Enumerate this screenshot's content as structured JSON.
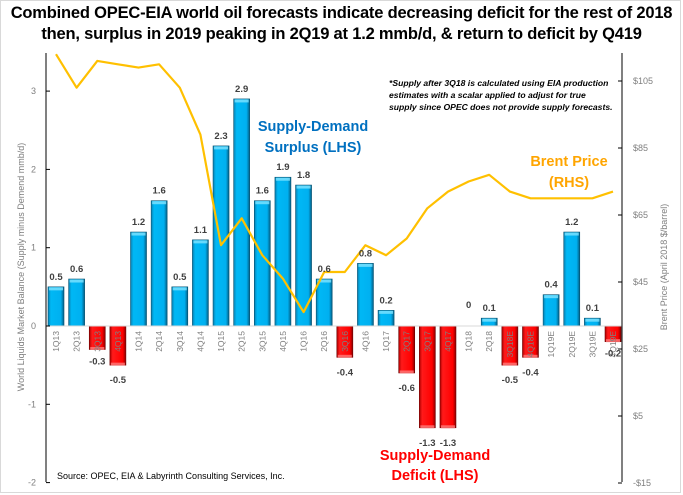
{
  "chart_data": {
    "type": "bar",
    "title_lines": [
      "Combined OPEC-EIA world oil forecasts indicate decreasing deficit for the rest of 2018",
      "then, surplus in 2019 peaking in 2Q19 at 1.2 mmb/d, & return to deficit by Q419"
    ],
    "categories": [
      "1Q13",
      "2Q13",
      "3Q13",
      "4Q13",
      "1Q14",
      "2Q14",
      "3Q14",
      "4Q14",
      "1Q15",
      "2Q15",
      "3Q15",
      "4Q15",
      "1Q16",
      "2Q16",
      "3Q16",
      "4Q16",
      "1Q17",
      "2Q17",
      "3Q17",
      "4Q17",
      "1Q18",
      "2Q18",
      "3Q18E",
      "4Q18E",
      "1Q19E",
      "2Q19E",
      "3Q19E",
      "4Q19E"
    ],
    "series": [
      {
        "name": "World Liquids Market Balance",
        "axis": "left",
        "type": "bar",
        "values": [
          0.5,
          0.6,
          -0.3,
          -0.5,
          1.2,
          1.6,
          0.5,
          1.1,
          2.3,
          2.9,
          1.6,
          1.9,
          1.8,
          0.6,
          -0.4,
          0.8,
          0.2,
          -0.6,
          -1.3,
          -1.3,
          0,
          0.1,
          -0.5,
          -0.4,
          0.4,
          1.2,
          0.1,
          -0.2
        ],
        "labels": [
          "0.5",
          "0.6",
          "-0.3",
          "-0.5",
          "1.2",
          "1.6",
          "0.5",
          "1.1",
          "2.3",
          "2.9",
          "1.6",
          "1.9",
          "1.8",
          "0.6",
          "-0.4",
          "0.8",
          "0.2",
          "-0.6",
          "-1.3",
          "-1.3",
          "0",
          "0.1",
          "-0.5",
          "-0.4",
          "0.4",
          "1.2",
          "0.1",
          "-0.2"
        ],
        "positive_color": "#00b0f0",
        "negative_color": "#ff0000"
      },
      {
        "name": "Brent Price",
        "axis": "right",
        "type": "line",
        "values": [
          113,
          103,
          111,
          110,
          109,
          110,
          103,
          89,
          56,
          64,
          53,
          46,
          36,
          48,
          48,
          56,
          53,
          58,
          67,
          72,
          75,
          77,
          72,
          70,
          70,
          70,
          70,
          72
        ],
        "color": "#ffc000"
      }
    ],
    "ylabel": "World Liquids  Market Balance (Supply minus Demend mmb/d)",
    "ylim": [
      -2,
      3.5
    ],
    "yticks": [
      "-2",
      "-1",
      "0",
      "1",
      "2",
      "3"
    ],
    "ytick_values": [
      -2,
      -1,
      0,
      1,
      2,
      3
    ],
    "y2label": "Brent  Price  (April  2018 $/barrel)",
    "y2lim": [
      -15,
      113
    ],
    "y2ticks": [
      "-$15",
      "$5",
      "$25",
      "$45",
      "$65",
      "$85",
      "$105"
    ],
    "y2tick_values": [
      -15,
      5,
      25,
      45,
      65,
      85,
      105
    ],
    "grid": false,
    "annotations": {
      "surplus": [
        "Supply-Demand",
        "Surplus (LHS)"
      ],
      "deficit": [
        "Supply-Demand",
        "Deficit (LHS)"
      ],
      "brent": [
        "Brent Price",
        "(RHS)"
      ],
      "note": [
        "*Supply after 3Q18 is calculated  using  EIA production",
        "estimates  with  a scalar applied  to adjust for true",
        "supply since OPEC does not provide supply forecasts."
      ],
      "source": "Source:  OPEC, EIA & Labyrinth Consulting Services, Inc."
    },
    "colors": {
      "surplus_text": "#0070c0",
      "deficit_text": "#ff0000",
      "brent_text": "#ffa500"
    }
  }
}
